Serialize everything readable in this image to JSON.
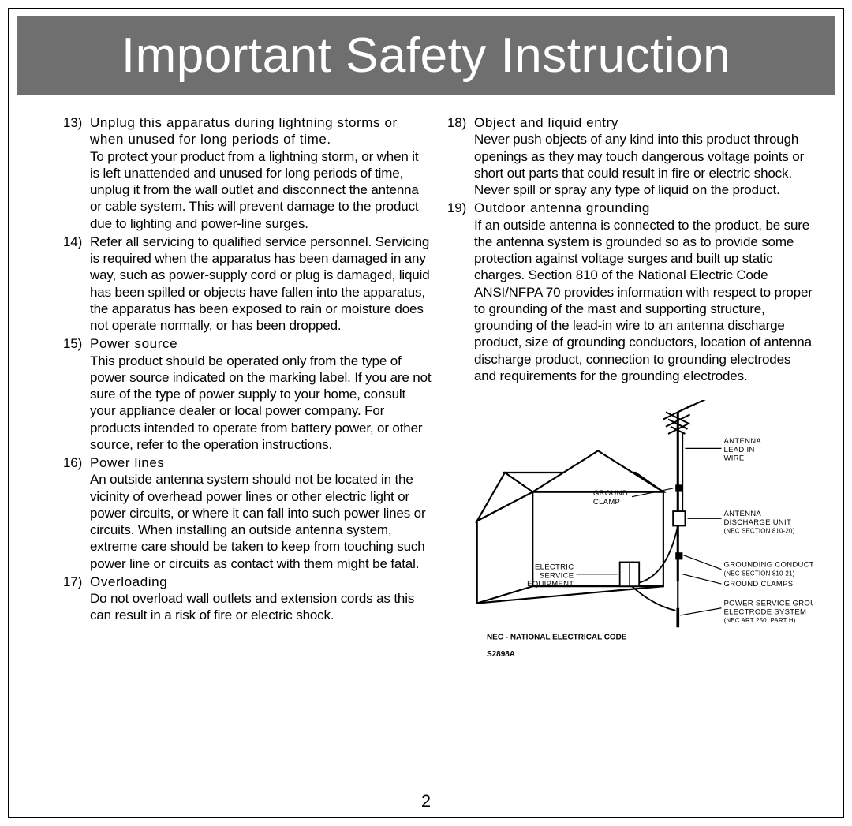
{
  "banner": {
    "title": "Important Safety Instruction"
  },
  "colors": {
    "banner_bg": "#6f6f6f",
    "banner_text": "#ffffff",
    "border": "#000000",
    "text": "#000000"
  },
  "page_number": "2",
  "left_column": [
    {
      "num": "13)",
      "label": "Unplug this apparatus during lightning storms or when unused for long periods of time.",
      "text": "To protect your product from a lightning storm, or when it is left unattended and unused for long periods of time, unplug it from the wall outlet and disconnect the antenna or cable system. This will prevent damage to the product due to lighting and power-line surges."
    },
    {
      "num": "14)",
      "label": "",
      "text": "Refer all servicing to qualified service personnel. Servicing is required when the apparatus has been damaged in any way, such as power-supply cord or plug is damaged, liquid has been spilled or objects have fallen into the apparatus, the apparatus has been exposed to rain or moisture does not operate normally, or has been dropped."
    },
    {
      "num": "15)",
      "label": "Power source",
      "text": "This product should be operated only from the type of power source indicated on the marking label. If you are not sure of the type of power supply to your home, consult your appliance dealer or local power company. For products intended to operate from battery power, or other source, refer to the operation instructions."
    },
    {
      "num": "16)",
      "label": "Power lines",
      "text": "An outside antenna system should not be located in the vicinity of overhead power lines or other electric light or power circuits, or where it can fall into such power lines or circuits. When installing an outside antenna system, extreme care should be taken to keep from touching such power line or circuits as contact with them might be fatal."
    },
    {
      "num": "17)",
      "label": "Overloading",
      "text": "Do not overload wall outlets and extension cords as this can result in a risk of fire or electric shock."
    }
  ],
  "right_column": [
    {
      "num": "18)",
      "label": "Object and liquid entry",
      "text": "Never push objects of any kind into this product through openings as they may touch dangerous voltage points or short out parts that could result in fire or electric shock. Never spill or spray any type of liquid on the product."
    },
    {
      "num": "19)",
      "label": "Outdoor antenna grounding",
      "text": "If an outside antenna is connected to the product, be sure the antenna system is grounded so as to provide some protection against voltage surges and built up static charges. Section 810 of the National Electric Code ANSI/NFPA 70 provides information with respect to proper to grounding of the mast and supporting structure, grounding of the lead-in wire to an antenna discharge product, size of grounding conductors, location of antenna discharge product, connection to grounding electrodes and requirements for the grounding electrodes."
    }
  ],
  "diagram": {
    "labels": {
      "antenna_lead_in_wire": [
        "ANTENNA",
        "LEAD IN",
        "WIRE"
      ],
      "ground_clamp_top": [
        "GROUND",
        "CLAMP"
      ],
      "antenna_discharge_unit": [
        "ANTENNA",
        "DISCHARGE UNIT",
        "(NEC SECTION 810-20)"
      ],
      "electric_service_equipment": [
        "ELECTRIC",
        "SERVICE",
        "EQUIPMENT"
      ],
      "grounding_conductors": [
        "GROUNDING CONDUCTORS",
        "(NEC SECTION 810-21)"
      ],
      "ground_clamps": "GROUND CLAMPS",
      "power_service_grounding": [
        "POWER SERVICE GROUNDING",
        "ELECTRODE SYSTEM",
        "(NEC ART 250. PART H)"
      ],
      "footnote": "NEC - NATIONAL ELECTRICAL CODE",
      "code": "S2898A"
    }
  }
}
